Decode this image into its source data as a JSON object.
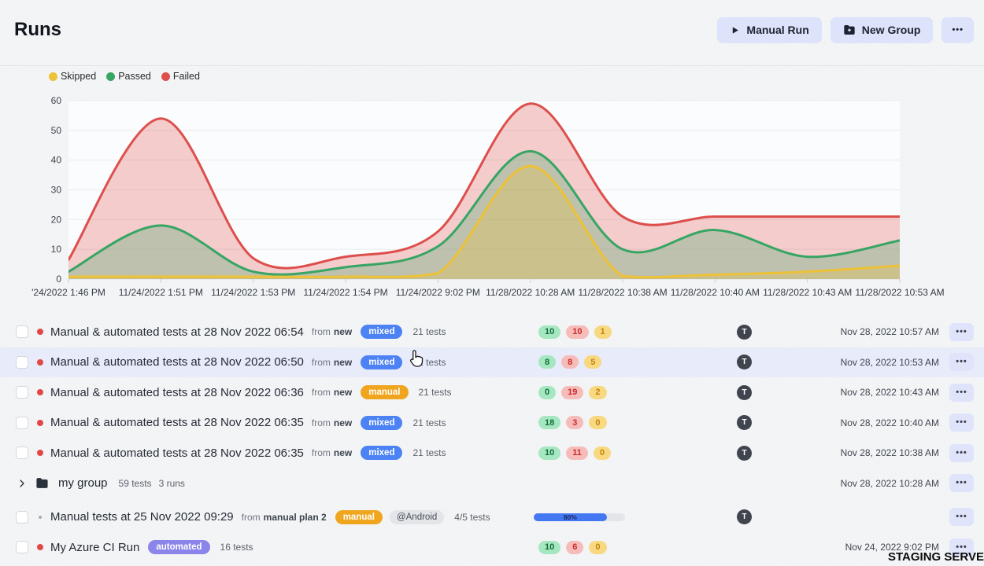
{
  "header": {
    "title": "Runs",
    "manual_run_label": "Manual Run",
    "new_group_label": "New Group",
    "more_label": "•••"
  },
  "legend": [
    {
      "label": "Skipped",
      "color": "#eec237"
    },
    {
      "label": "Passed",
      "color": "#37a564"
    },
    {
      "label": "Failed",
      "color": "#dd4f4c"
    }
  ],
  "chart_data": {
    "type": "area",
    "title": "",
    "xlabel": "",
    "ylabel": "",
    "ylim": [
      0,
      60
    ],
    "ytick_step": 10,
    "grid": true,
    "legend_position": "top-left",
    "x_labels": [
      "'24/2022 1:46 PM",
      "11/24/2022 1:51 PM",
      "11/24/2022 1:53 PM",
      "11/24/2022 1:54 PM",
      "11/24/2022 9:02 PM",
      "11/28/2022 10:28 AM",
      "11/28/2022 10:38 AM",
      "11/28/2022 10:40 AM",
      "11/28/2022 10:43 AM",
      "11/28/2022 10:53 AM"
    ],
    "series": [
      {
        "name": "Failed",
        "color": "#dd4f4c",
        "values": [
          6.5,
          54,
          7,
          7.5,
          16,
          59,
          21,
          21,
          21,
          21
        ]
      },
      {
        "name": "Passed",
        "color": "#37a564",
        "values": [
          2.5,
          18,
          2.5,
          4,
          11,
          43,
          10,
          16.5,
          7.5,
          13
        ]
      },
      {
        "name": "Skipped",
        "color": "#eec237",
        "values": [
          0.8,
          0.8,
          0.8,
          0.8,
          2,
          38,
          1,
          1.5,
          2.5,
          4.5
        ]
      }
    ]
  },
  "list": {
    "menu_label": "•••",
    "from_label": "from"
  },
  "runs": [
    {
      "type": "run",
      "status_dot": "red",
      "title": "Manual & automated tests at 28 Nov 2022 06:54",
      "from_value": "new",
      "type_badge": {
        "label": "mixed",
        "color": "#4c82f3"
      },
      "tests": "21 tests",
      "counts": {
        "passed": "10",
        "failed": "10",
        "skipped": "1"
      },
      "avatar": "T",
      "timestamp": "Nov 28, 2022 10:57 AM",
      "highlighted": false
    },
    {
      "type": "run",
      "status_dot": "red",
      "title": "Manual & automated tests at 28 Nov 2022 06:50",
      "from_value": "new",
      "type_badge": {
        "label": "mixed",
        "color": "#4c82f3"
      },
      "tests": "21 tests",
      "counts": {
        "passed": "8",
        "failed": "8",
        "skipped": "5"
      },
      "avatar": "T",
      "timestamp": "Nov 28, 2022 10:53 AM",
      "highlighted": true
    },
    {
      "type": "run",
      "status_dot": "red",
      "title": "Manual & automated tests at 28 Nov 2022 06:36",
      "from_value": "new",
      "type_badge": {
        "label": "manual",
        "color": "#f0a51e"
      },
      "tests": "21 tests",
      "counts": {
        "passed": "0",
        "failed": "19",
        "skipped": "2"
      },
      "avatar": "T",
      "timestamp": "Nov 28, 2022 10:43 AM",
      "highlighted": false
    },
    {
      "type": "run",
      "status_dot": "red",
      "title": "Manual & automated tests at 28 Nov 2022 06:35",
      "from_value": "new",
      "type_badge": {
        "label": "mixed",
        "color": "#4c82f3"
      },
      "tests": "21 tests",
      "counts": {
        "passed": "18",
        "failed": "3",
        "skipped": "0"
      },
      "avatar": "T",
      "timestamp": "Nov 28, 2022 10:40 AM",
      "highlighted": false
    },
    {
      "type": "run",
      "status_dot": "red",
      "title": "Manual & automated tests at 28 Nov 2022 06:35",
      "from_value": "new",
      "type_badge": {
        "label": "mixed",
        "color": "#4c82f3"
      },
      "tests": "21 tests",
      "counts": {
        "passed": "10",
        "failed": "11",
        "skipped": "0"
      },
      "avatar": "T",
      "timestamp": "Nov 28, 2022 10:38 AM",
      "highlighted": false
    },
    {
      "type": "group",
      "title": "my group",
      "stats": [
        "59 tests",
        "3 runs"
      ],
      "timestamp": "Nov 28, 2022 10:28 AM"
    },
    {
      "type": "run",
      "gap": true,
      "status_dot": "gray",
      "title": "Manual tests at 25 Nov 2022 09:29",
      "from_value": "manual plan 2",
      "type_badge": {
        "label": "manual",
        "color": "#f0a51e"
      },
      "tag": "@Android",
      "tests": "4/5 tests",
      "progress": {
        "percent": 80,
        "label": "80%"
      },
      "avatar": "T",
      "timestamp": "",
      "highlighted": false
    },
    {
      "type": "run",
      "status_dot": "red",
      "title": "My Azure CI Run",
      "type_badge": {
        "label": "automated",
        "color": "#8b84ea"
      },
      "tests": "16 tests",
      "counts": {
        "passed": "10",
        "failed": "6",
        "skipped": "0"
      },
      "timestamp": "Nov 24, 2022 9:02 PM",
      "highlighted": false
    }
  ],
  "watermark": "STAGING SERVER"
}
